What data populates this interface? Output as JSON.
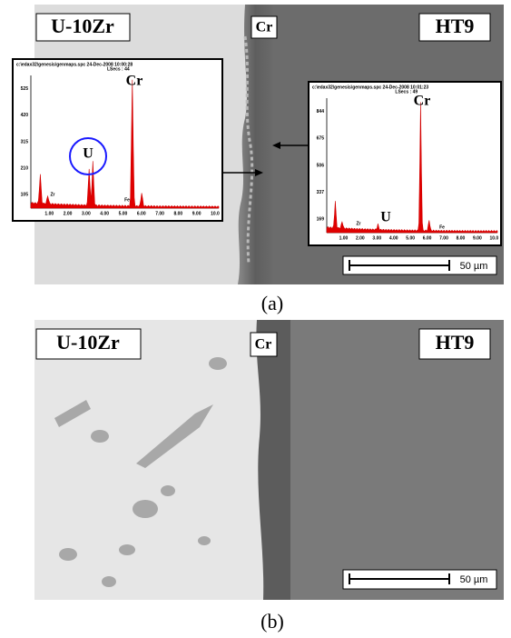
{
  "panels": [
    {
      "caption": "(a)",
      "labels": {
        "left": "U-10Zr",
        "middle": "Cr",
        "right": "HT9"
      },
      "scale_bar": "50 µm",
      "spectra": [
        {
          "header": "c:\\edax32\\genesis\\genmaps.spc 24-Dec-2008 10:00:28",
          "lsecs": "LSecs : 44",
          "yticks": [
            "525",
            "420",
            "315",
            "210",
            "105"
          ],
          "xticks": [
            "1.00",
            "2.00",
            "3.00",
            "4.00",
            "5.00",
            "6.00",
            "7.00",
            "8.00",
            "9.00",
            "10.0"
          ],
          "peaks": {
            "u": "U",
            "cr": "Cr",
            "zr": "Zr",
            "fe": "Fe"
          }
        },
        {
          "header": "c:\\edax32\\genesis\\genmaps.spc 24-Dec-2008 10:01:23",
          "lsecs": "LSecs : 49",
          "yticks": [
            "844",
            "675",
            "506",
            "337",
            "169"
          ],
          "xticks": [
            "1.00",
            "2.00",
            "3.00",
            "4.00",
            "5.00",
            "6.00",
            "7.00",
            "8.00",
            "9.00",
            "10.0"
          ],
          "peaks": {
            "u": "U",
            "cr": "Cr",
            "zr": "Zr",
            "fe": "Fe"
          }
        }
      ]
    },
    {
      "caption": "(b)",
      "labels": {
        "left": "U-10Zr",
        "middle": "Cr",
        "right": "HT9"
      },
      "scale_bar": "50 µm"
    }
  ]
}
